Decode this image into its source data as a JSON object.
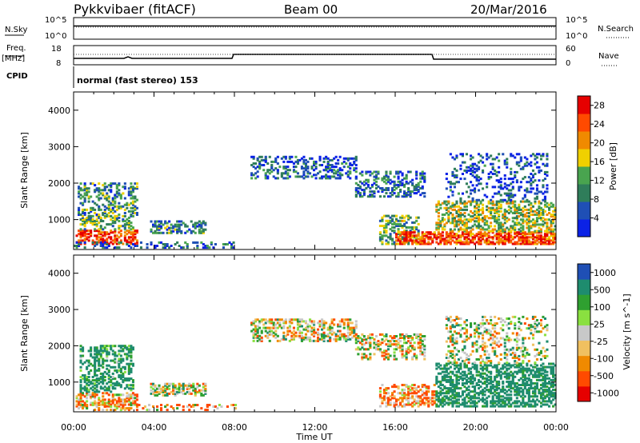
{
  "header": {
    "station": "Pykkvibaer (fitACF)",
    "beam": "Beam 00",
    "date": "20/Mar/2016"
  },
  "panel_labels": {
    "nsky": "N.Sky",
    "nsearch": "N.Search",
    "freq": "Freq.",
    "freq_unit": "[MHz]",
    "cpid": "CPID",
    "nave": "Nave",
    "cpid_text": "normal (fast stereo) 153",
    "noise_left_ticks": [
      "10^5",
      "10^0"
    ],
    "noise_right_ticks": [
      "10^5",
      "10^0"
    ],
    "freq_left_ticks": [
      "18",
      "8"
    ],
    "freq_right_ticks": [
      "60",
      "0"
    ]
  },
  "colors": {
    "power_scale": [
      "#0b22e6",
      "#1f4fb5",
      "#2f7d5a",
      "#49a44f",
      "#f0d000",
      "#f08a00",
      "#ff4a00",
      "#e60000"
    ],
    "velocity_scale": [
      "#e60000",
      "#ff4a00",
      "#f08a00",
      "#f0c060",
      "#c8c8c8",
      "#8ae040",
      "#2fa030",
      "#1e8c6e",
      "#1f4fb5"
    ]
  },
  "chart_data": [
    {
      "type": "heatmap",
      "name": "power",
      "title": "",
      "ylabel": "Slant Range [km]",
      "ylim": [
        180,
        4500
      ],
      "yticks": [
        1000,
        2000,
        3000,
        4000
      ],
      "xlim": [
        0,
        24
      ],
      "colorbar_label": "Power [dB]",
      "colorbar_ticks": [
        4,
        8,
        12,
        16,
        20,
        24,
        28
      ],
      "value_range": [
        0,
        30
      ],
      "regions": [
        {
          "t0": 0.1,
          "t1": 3.2,
          "r0": 300,
          "r1": 700,
          "v": 26,
          "d": 0.55
        },
        {
          "t0": 0.3,
          "t1": 3.0,
          "r0": 700,
          "r1": 1100,
          "v": 12,
          "d": 0.45
        },
        {
          "t0": 0.2,
          "t1": 3.2,
          "r0": 1100,
          "r1": 2000,
          "v": 10,
          "d": 0.35
        },
        {
          "t0": 3.8,
          "t1": 6.5,
          "r0": 600,
          "r1": 950,
          "v": 9,
          "d": 0.5
        },
        {
          "t0": 0.0,
          "t1": 8.0,
          "r0": 200,
          "r1": 380,
          "v": 6,
          "d": 0.25
        },
        {
          "t0": 8.8,
          "t1": 14.0,
          "r0": 2100,
          "r1": 2700,
          "v": 6,
          "d": 0.35
        },
        {
          "t0": 14.0,
          "t1": 17.5,
          "r0": 1600,
          "r1": 2300,
          "v": 7,
          "d": 0.35
        },
        {
          "t0": 15.2,
          "t1": 17.2,
          "r0": 300,
          "r1": 1100,
          "v": 12,
          "d": 0.4
        },
        {
          "t0": 16.0,
          "t1": 24.0,
          "r0": 300,
          "r1": 650,
          "v": 25,
          "d": 0.65
        },
        {
          "t0": 18.0,
          "t1": 24.0,
          "r0": 650,
          "r1": 1500,
          "v": 15,
          "d": 0.45
        },
        {
          "t0": 18.5,
          "t1": 23.6,
          "r0": 1500,
          "r1": 2800,
          "v": 5,
          "d": 0.22
        }
      ]
    },
    {
      "type": "heatmap",
      "name": "velocity",
      "title": "",
      "ylabel": "Slant Range [km]",
      "xlabel": "Time UT",
      "ylim": [
        180,
        4500
      ],
      "yticks": [
        1000,
        2000,
        3000,
        4000
      ],
      "xlim": [
        0,
        24
      ],
      "xticks": [
        "00:00",
        "04:00",
        "08:00",
        "12:00",
        "16:00",
        "20:00",
        "00:00"
      ],
      "colorbar_label": "Velocity [m s^-1]",
      "colorbar_ticks": [
        "1000",
        "500",
        "100",
        "25",
        "-25",
        "-100",
        "-500",
        "-1000"
      ],
      "value_range": [
        -1000,
        1000
      ],
      "regions": [
        {
          "t0": 0.1,
          "t1": 3.2,
          "r0": 300,
          "r1": 700,
          "v": -70,
          "d": 0.55
        },
        {
          "t0": 0.3,
          "t1": 3.0,
          "r0": 700,
          "r1": 2000,
          "v": 150,
          "d": 0.4
        },
        {
          "t0": 3.8,
          "t1": 6.5,
          "r0": 600,
          "r1": 950,
          "v": 5,
          "d": 0.5
        },
        {
          "t0": 0.0,
          "t1": 8.0,
          "r0": 200,
          "r1": 380,
          "v": -60,
          "d": 0.25
        },
        {
          "t0": 8.8,
          "t1": 14.0,
          "r0": 2100,
          "r1": 2700,
          "v": 0,
          "d": 0.45
        },
        {
          "t0": 14.0,
          "t1": 17.5,
          "r0": 1600,
          "r1": 2300,
          "v": -20,
          "d": 0.4
        },
        {
          "t0": 15.2,
          "t1": 18.0,
          "r0": 300,
          "r1": 900,
          "v": -90,
          "d": 0.45
        },
        {
          "t0": 18.0,
          "t1": 24.0,
          "r0": 300,
          "r1": 1500,
          "v": 180,
          "d": 0.5
        },
        {
          "t0": 18.5,
          "t1": 23.6,
          "r0": 1500,
          "r1": 2800,
          "v": 10,
          "d": 0.25
        }
      ]
    }
  ],
  "axis_labels": {
    "time_ticks": [
      "00:00",
      "04:00",
      "08:00",
      "12:00",
      "16:00",
      "20:00",
      "00:00"
    ],
    "xlabel": "Time UT"
  }
}
